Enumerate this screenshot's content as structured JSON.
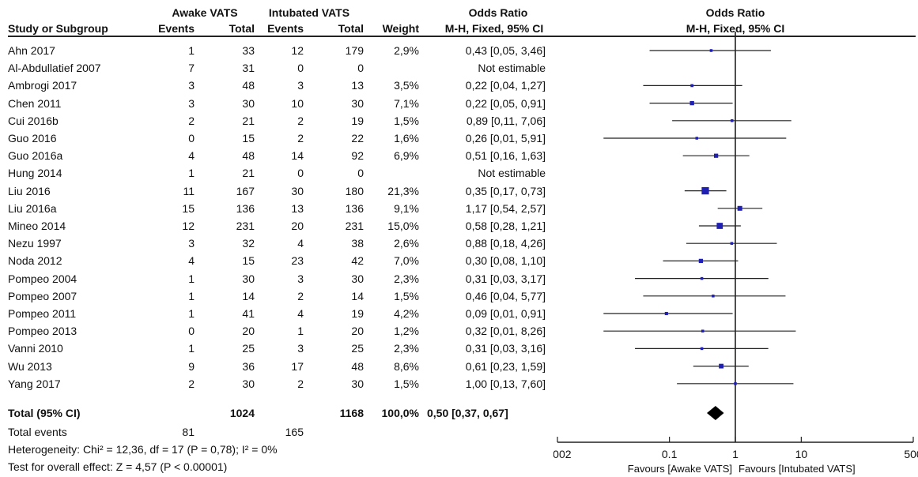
{
  "group_headers": {
    "awake": "Awake VATS",
    "intubated": "Intubated VATS",
    "or_left": "Odds Ratio",
    "or_right": "Odds Ratio"
  },
  "columns": {
    "study": "Study or Subgroup",
    "events1": "Events",
    "total1": "Total",
    "events2": "Events",
    "total2": "Total",
    "weight": "Weight",
    "method_left": "M-H, Fixed, 95% CI",
    "method_right": "M-H, Fixed, 95% CI"
  },
  "studies": [
    {
      "name": "Ahn 2017",
      "e1": "1",
      "t1": "33",
      "e2": "12",
      "t2": "179",
      "weight": "2,9%",
      "ci": "0,43 [0,05, 3,46]"
    },
    {
      "name": "Al-Abdullatief 2007",
      "e1": "7",
      "t1": "31",
      "e2": "0",
      "t2": "0",
      "weight": "",
      "ci": "Not estimable"
    },
    {
      "name": "Ambrogi 2017",
      "e1": "3",
      "t1": "48",
      "e2": "3",
      "t2": "13",
      "weight": "3,5%",
      "ci": "0,22 [0,04, 1,27]"
    },
    {
      "name": "Chen 2011",
      "e1": "3",
      "t1": "30",
      "e2": "10",
      "t2": "30",
      "weight": "7,1%",
      "ci": "0,22 [0,05, 0,91]"
    },
    {
      "name": "Cui 2016b",
      "e1": "2",
      "t1": "21",
      "e2": "2",
      "t2": "19",
      "weight": "1,5%",
      "ci": "0,89 [0,11, 7,06]"
    },
    {
      "name": "Guo 2016",
      "e1": "0",
      "t1": "15",
      "e2": "2",
      "t2": "22",
      "weight": "1,6%",
      "ci": "0,26 [0,01, 5,91]"
    },
    {
      "name": "Guo 2016a",
      "e1": "4",
      "t1": "48",
      "e2": "14",
      "t2": "92",
      "weight": "6,9%",
      "ci": "0,51 [0,16, 1,63]"
    },
    {
      "name": "Hung 2014",
      "e1": "1",
      "t1": "21",
      "e2": "0",
      "t2": "0",
      "weight": "",
      "ci": "Not estimable"
    },
    {
      "name": "Liu 2016",
      "e1": "11",
      "t1": "167",
      "e2": "30",
      "t2": "180",
      "weight": "21,3%",
      "ci": "0,35 [0,17, 0,73]"
    },
    {
      "name": "Liu 2016a",
      "e1": "15",
      "t1": "136",
      "e2": "13",
      "t2": "136",
      "weight": "9,1%",
      "ci": "1,17 [0,54, 2,57]"
    },
    {
      "name": "Mineo 2014",
      "e1": "12",
      "t1": "231",
      "e2": "20",
      "t2": "231",
      "weight": "15,0%",
      "ci": "0,58 [0,28, 1,21]"
    },
    {
      "name": "Nezu 1997",
      "e1": "3",
      "t1": "32",
      "e2": "4",
      "t2": "38",
      "weight": "2,6%",
      "ci": "0,88 [0,18, 4,26]"
    },
    {
      "name": "Noda 2012",
      "e1": "4",
      "t1": "15",
      "e2": "23",
      "t2": "42",
      "weight": "7,0%",
      "ci": "0,30 [0,08, 1,10]"
    },
    {
      "name": "Pompeo 2004",
      "e1": "1",
      "t1": "30",
      "e2": "3",
      "t2": "30",
      "weight": "2,3%",
      "ci": "0,31 [0,03, 3,17]"
    },
    {
      "name": "Pompeo 2007",
      "e1": "1",
      "t1": "14",
      "e2": "2",
      "t2": "14",
      "weight": "1,5%",
      "ci": "0,46 [0,04, 5,77]"
    },
    {
      "name": "Pompeo 2011",
      "e1": "1",
      "t1": "41",
      "e2": "4",
      "t2": "19",
      "weight": "4,2%",
      "ci": "0,09 [0,01, 0,91]"
    },
    {
      "name": "Pompeo 2013",
      "e1": "0",
      "t1": "20",
      "e2": "1",
      "t2": "20",
      "weight": "1,2%",
      "ci": "0,32 [0,01, 8,26]"
    },
    {
      "name": "Vanni 2010",
      "e1": "1",
      "t1": "25",
      "e2": "3",
      "t2": "25",
      "weight": "2,3%",
      "ci": "0,31 [0,03, 3,16]"
    },
    {
      "name": "Wu 2013",
      "e1": "9",
      "t1": "36",
      "e2": "17",
      "t2": "48",
      "weight": "8,6%",
      "ci": "0,61 [0,23, 1,59]"
    },
    {
      "name": "Yang 2017",
      "e1": "2",
      "t1": "30",
      "e2": "2",
      "t2": "30",
      "weight": "1,5%",
      "ci": "1,00 [0,13, 7,60]"
    }
  ],
  "total": {
    "name": "Total (95% CI)",
    "t1": "1024",
    "t2": "1168",
    "weight": "100,0%",
    "ci": "0,50 [0,37, 0,67]"
  },
  "total_events": {
    "label": "Total events",
    "e1": "81",
    "e2": "165"
  },
  "heterogeneity": "Heterogeneity: Chi² = 12,36, df = 17 (P = 0,78); I² = 0%",
  "overall_effect": "Test for overall effect: Z = 4,57 (P < 0.00001)",
  "chart_data": {
    "type": "forest",
    "x_scale": "log",
    "xlim": [
      0.002,
      500
    ],
    "x_ticks": [
      {
        "value": 0.002,
        "label": "0.002"
      },
      {
        "value": 0.1,
        "label": "0.1"
      },
      {
        "value": 1,
        "label": "1"
      },
      {
        "value": 10,
        "label": "10"
      },
      {
        "value": 500,
        "label": "500"
      }
    ],
    "favours_left": "Favours [Awake VATS]",
    "favours_right": "Favours [Intubated VATS]",
    "marker_color": "#1f1fb4",
    "points": [
      {
        "study": "Ahn 2017",
        "or": 0.43,
        "lo": 0.05,
        "hi": 3.46,
        "weight": 2.9
      },
      {
        "study": "Al-Abdullatief 2007",
        "or": null,
        "lo": null,
        "hi": null,
        "weight": 0
      },
      {
        "study": "Ambrogi 2017",
        "or": 0.22,
        "lo": 0.04,
        "hi": 1.27,
        "weight": 3.5
      },
      {
        "study": "Chen 2011",
        "or": 0.22,
        "lo": 0.05,
        "hi": 0.91,
        "weight": 7.1
      },
      {
        "study": "Cui 2016b",
        "or": 0.89,
        "lo": 0.11,
        "hi": 7.06,
        "weight": 1.5
      },
      {
        "study": "Guo 2016",
        "or": 0.26,
        "lo": 0.01,
        "hi": 5.91,
        "weight": 1.6
      },
      {
        "study": "Guo 2016a",
        "or": 0.51,
        "lo": 0.16,
        "hi": 1.63,
        "weight": 6.9
      },
      {
        "study": "Hung 2014",
        "or": null,
        "lo": null,
        "hi": null,
        "weight": 0
      },
      {
        "study": "Liu 2016",
        "or": 0.35,
        "lo": 0.17,
        "hi": 0.73,
        "weight": 21.3
      },
      {
        "study": "Liu 2016a",
        "or": 1.17,
        "lo": 0.54,
        "hi": 2.57,
        "weight": 9.1
      },
      {
        "study": "Mineo 2014",
        "or": 0.58,
        "lo": 0.28,
        "hi": 1.21,
        "weight": 15.0
      },
      {
        "study": "Nezu 1997",
        "or": 0.88,
        "lo": 0.18,
        "hi": 4.26,
        "weight": 2.6
      },
      {
        "study": "Noda 2012",
        "or": 0.3,
        "lo": 0.08,
        "hi": 1.1,
        "weight": 7.0
      },
      {
        "study": "Pompeo 2004",
        "or": 0.31,
        "lo": 0.03,
        "hi": 3.17,
        "weight": 2.3
      },
      {
        "study": "Pompeo 2007",
        "or": 0.46,
        "lo": 0.04,
        "hi": 5.77,
        "weight": 1.5
      },
      {
        "study": "Pompeo 2011",
        "or": 0.09,
        "lo": 0.01,
        "hi": 0.91,
        "weight": 4.2
      },
      {
        "study": "Pompeo 2013",
        "or": 0.32,
        "lo": 0.01,
        "hi": 8.26,
        "weight": 1.2
      },
      {
        "study": "Vanni 2010",
        "or": 0.31,
        "lo": 0.03,
        "hi": 3.16,
        "weight": 2.3
      },
      {
        "study": "Wu 2013",
        "or": 0.61,
        "lo": 0.23,
        "hi": 1.59,
        "weight": 8.6
      },
      {
        "study": "Yang 2017",
        "or": 1.0,
        "lo": 0.13,
        "hi": 7.6,
        "weight": 1.5
      }
    ],
    "summary": {
      "or": 0.5,
      "lo": 0.37,
      "hi": 0.67
    }
  }
}
